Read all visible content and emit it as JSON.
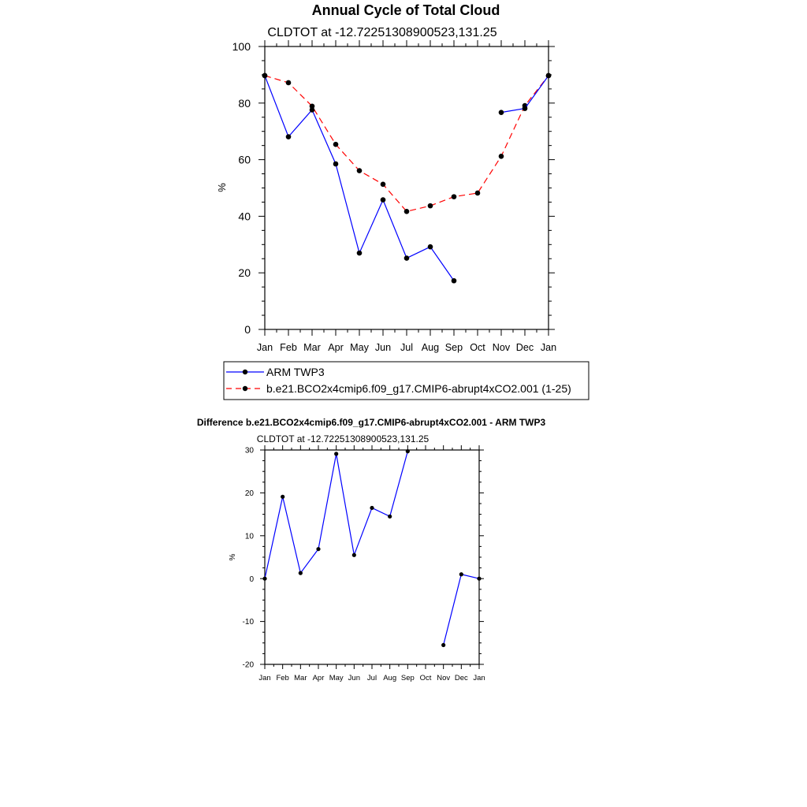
{
  "chart_data": [
    {
      "type": "line",
      "title": "Annual Cycle of Total Cloud",
      "subtitle": "CLDTOT at -12.72251308900523,131.25",
      "ylabel": "%",
      "xlabel": "",
      "ylim": [
        0,
        100
      ],
      "yticks": [
        0,
        20,
        40,
        60,
        80,
        100
      ],
      "categories": [
        "Jan",
        "Feb",
        "Mar",
        "Apr",
        "May",
        "Jun",
        "Jul",
        "Aug",
        "Sep",
        "Oct",
        "Nov",
        "Dec",
        "Jan"
      ],
      "series": [
        {
          "name": "ARM TWP3",
          "color": "#0000ff",
          "dash": "solid",
          "values": [
            89.7,
            68.1,
            77.6,
            58.5,
            27.0,
            45.8,
            25.2,
            29.2,
            17.2,
            null,
            76.7,
            78.1,
            89.7
          ]
        },
        {
          "name": "b.e21.BCO2x4cmip6.f09_g17.CMIP6-abrupt4xCO2.001 (1-25)",
          "color": "#ff0000",
          "dash": "dashed",
          "values": [
            89.7,
            87.2,
            78.9,
            65.4,
            56.1,
            51.3,
            41.7,
            43.7,
            46.9,
            48.2,
            61.2,
            79.1,
            89.7
          ]
        }
      ]
    },
    {
      "type": "line",
      "title": "Difference b.e21.BCO2x4cmip6.f09_g17.CMIP6-abrupt4xCO2.001 - ARM TWP3",
      "subtitle": "CLDTOT at -12.72251308900523,131.25",
      "ylabel": "%",
      "xlabel": "",
      "ylim": [
        -20,
        30
      ],
      "yticks": [
        -20,
        -10,
        0,
        10,
        20,
        30
      ],
      "categories": [
        "Jan",
        "Feb",
        "Mar",
        "Apr",
        "May",
        "Jun",
        "Jul",
        "Aug",
        "Sep",
        "Oct",
        "Nov",
        "Dec",
        "Jan"
      ],
      "series": [
        {
          "name": "Difference",
          "color": "#0000ff",
          "dash": "solid",
          "values": [
            0.0,
            19.1,
            1.3,
            6.9,
            29.1,
            5.5,
            16.5,
            14.5,
            29.7,
            null,
            -15.5,
            1.0,
            0.0
          ]
        }
      ]
    }
  ]
}
